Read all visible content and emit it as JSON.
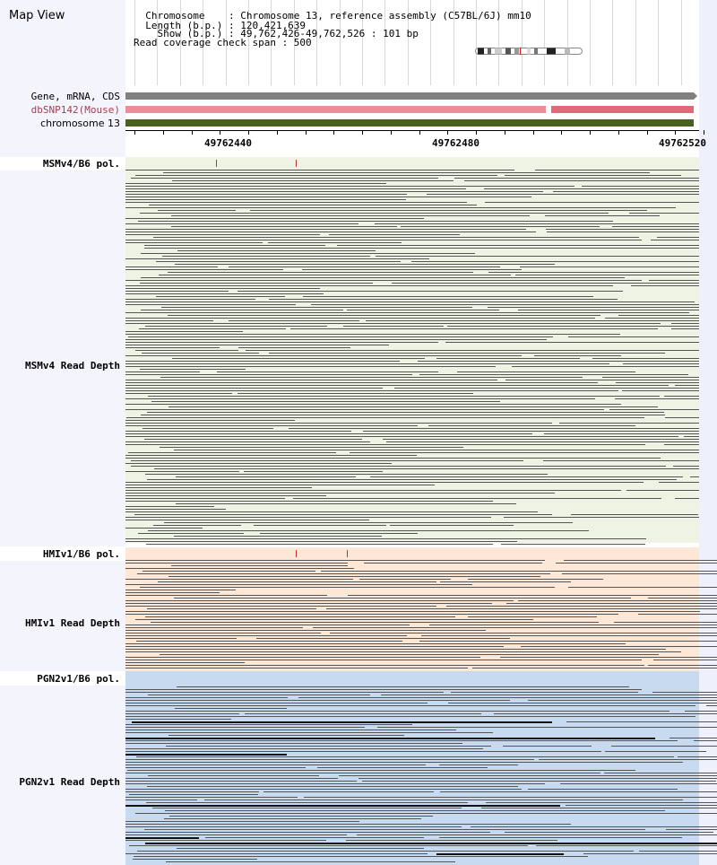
{
  "map_view": {
    "title": "Map View",
    "info_lines": [
      "  Chromosome    : Chromosome 13, reference assembly (C57BL/6J) mm10",
      "  Length (b.p.) : 120,421,639",
      "    Show (b.p.) : 49,762,426-49,762,526 : 101 bp",
      "Read coverage check span : 500"
    ]
  },
  "tracks": {
    "gene": {
      "label": "Gene, mRNA, CDS",
      "color": "#808080"
    },
    "dbsnp": {
      "label": "dbSNP142(Mouse)",
      "color_light": "#e8909a",
      "color_dark": "#e06878"
    },
    "chromosome": {
      "label": "chromosome 13",
      "color": "#4a6020"
    }
  },
  "ruler": {
    "ticks": [
      "49762440",
      "49762480",
      "49762520"
    ]
  },
  "panels": [
    {
      "pol_label": "MSMv4/B6 pol.",
      "depth_label": "MSMv4 Read Depth",
      "bg": "#eef3e4",
      "id": "msm"
    },
    {
      "pol_label": "HMIv1/B6 pol.",
      "depth_label": "HMIv1 Read Depth",
      "bg": "#fde8d8",
      "id": "hmi"
    },
    {
      "pol_label": "PGN2v1/B6 pol.",
      "depth_label": "PGN2v1 Read Depth",
      "bg": "#c8daf0",
      "id": "pgn"
    }
  ],
  "colors": {
    "read": "#555555",
    "snp_mark": "#c03030",
    "left_panel": "#f4f4fc"
  }
}
